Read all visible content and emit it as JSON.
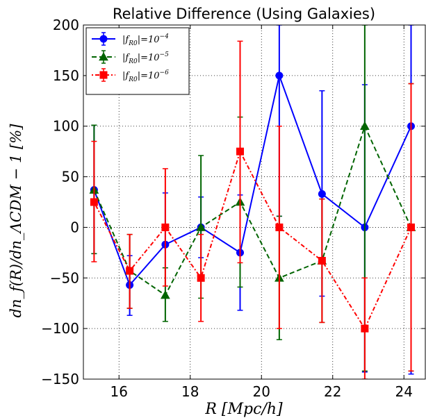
{
  "chart_data": {
    "type": "line",
    "title": "Relative Difference (Using Galaxies)",
    "xlabel": "R [Mpc/h]",
    "ylabel": "dn_f(R)/dn_ΛCDM − 1 [%]",
    "xlim": [
      15.0,
      24.6
    ],
    "ylim": [
      -150,
      200
    ],
    "xticks": [
      16,
      18,
      20,
      22,
      24
    ],
    "yticks": [
      -150,
      -100,
      -50,
      0,
      50,
      100,
      150,
      200
    ],
    "xtick_labels": [
      "16",
      "18",
      "20",
      "22",
      "24"
    ],
    "ytick_labels": [
      "−150",
      "−100",
      "−50",
      "0",
      "50",
      "100",
      "150",
      "200"
    ],
    "grid": true,
    "legend_position": "top-left",
    "series": [
      {
        "name": "|f_R0| = 10^−4",
        "legend_main": "|f",
        "legend_sub": "R0",
        "legend_mid": "|=10",
        "legend_sup": "−4",
        "color": "#0000ff",
        "marker": "circle",
        "linestyle": "solid",
        "x": [
          15.3,
          16.3,
          17.3,
          18.3,
          19.4,
          20.5,
          21.7,
          22.9,
          24.2
        ],
        "y": [
          37,
          -57,
          -17,
          0,
          -25,
          150,
          33,
          0,
          100
        ],
        "yerr_low": [
          -26,
          -87,
          -40,
          -30,
          -82,
          11,
          -68,
          -143,
          -145
        ],
        "yerr_high": [
          101,
          -28,
          34,
          30,
          32,
          200,
          135,
          141,
          200
        ]
      },
      {
        "name": "|f_R0| = 10^−5",
        "legend_main": "|f",
        "legend_sub": "R0",
        "legend_mid": "|=10",
        "legend_sup": "−5",
        "color": "#006400",
        "marker": "triangle",
        "linestyle": "dashed",
        "x": [
          15.3,
          16.3,
          17.3,
          18.3,
          19.4,
          20.5,
          21.7,
          22.9,
          24.2
        ],
        "y": [
          37,
          -43,
          -67,
          0,
          25,
          -50,
          -33,
          100,
          0
        ],
        "yerr_low": [
          -26,
          -80,
          -93,
          -70,
          -59,
          -111,
          -94,
          -142,
          -142
        ],
        "yerr_high": [
          101,
          -7,
          -40,
          71,
          109,
          11,
          28,
          200,
          142
        ]
      },
      {
        "name": "|f_R0| = 10^−6",
        "legend_main": "|f",
        "legend_sub": "R0",
        "legend_mid": "|=10",
        "legend_sup": "−6",
        "color": "#ff0000",
        "marker": "square",
        "linestyle": "dashdot",
        "x": [
          15.3,
          16.3,
          17.3,
          18.3,
          19.4,
          20.5,
          21.7,
          22.9,
          24.2
        ],
        "y": [
          25,
          -43,
          0,
          -50,
          75,
          0,
          -33,
          -100,
          0
        ],
        "yerr_low": [
          -34,
          -80,
          -58,
          -93,
          -35,
          -100,
          -94,
          -150,
          -142
        ],
        "yerr_high": [
          85,
          -7,
          58,
          -7,
          184,
          100,
          28,
          -50,
          142
        ]
      }
    ]
  }
}
